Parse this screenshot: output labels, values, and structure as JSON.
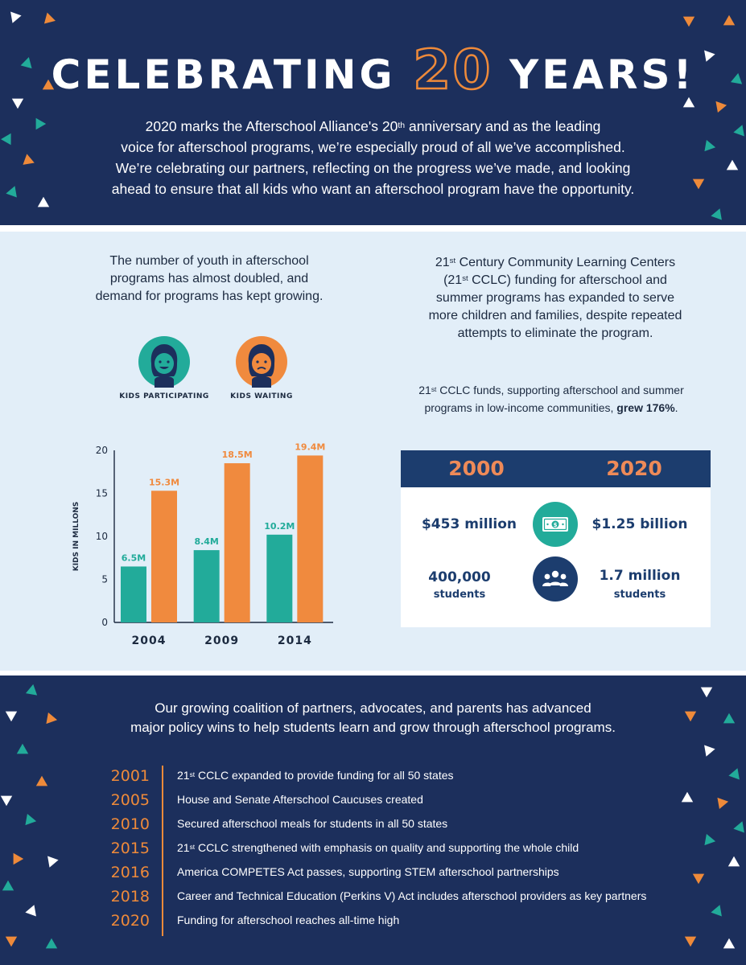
{
  "hero": {
    "title_pre": "CELEBRATING",
    "title_number": "20",
    "title_post": "YEARS!",
    "body_1a": "2020 marks the Afterschool Alliance's 20",
    "body_1sup": "th",
    "body_1b": " anniversary and as the leading",
    "body_2": "voice for afterschool programs, we’re especially proud of all we’ve accomplished.",
    "body_3": "We’re celebrating our partners, reflecting on the progress we’ve made, and looking",
    "body_4": "ahead to ensure that all kids who want an afterschool program have the opportunity."
  },
  "left": {
    "intro_1": "The number of youth in afterschool",
    "intro_2": "programs has almost doubled, and",
    "intro_3": "demand for programs has kept growing.",
    "legend_participating": "KIDS PARTICIPATING",
    "legend_waiting": "KIDS WAITING"
  },
  "chart_data": {
    "type": "bar",
    "categories": [
      "2004",
      "2009",
      "2014"
    ],
    "series": [
      {
        "name": "KIDS PARTICIPATING",
        "values": [
          6.5,
          8.4,
          10.2
        ],
        "labels": [
          "6.5M",
          "8.4M",
          "10.2M"
        ],
        "color": "#22ab9a"
      },
      {
        "name": "KIDS WAITING",
        "values": [
          15.3,
          18.5,
          19.4
        ],
        "labels": [
          "15.3M",
          "18.5M",
          "19.4M"
        ],
        "color": "#f08a3e"
      }
    ],
    "ylabel": "KIDS IN MILLONS",
    "xlabel": "",
    "ylim": [
      0,
      20
    ],
    "yticks": [
      0,
      5,
      10,
      15,
      20
    ],
    "grid": false,
    "legend": "top"
  },
  "right": {
    "intro_1a": "21",
    "intro_1sup": "st",
    "intro_1b": " Century Community Learning Centers",
    "intro_2a": "(21",
    "intro_2sup": "st",
    "intro_2b": " CCLC) funding for afterschool and",
    "intro_3": "summer programs has expanded to serve",
    "intro_4": "more children and families, despite repeated",
    "intro_5": "attempts to eliminate the program.",
    "note_1a": "21",
    "note_1sup": "st",
    "note_1b": " CCLC funds, supporting afterschool and summer",
    "note_2a": "programs in low-income communities, ",
    "note_2bold": "grew 176%",
    "note_2c": "."
  },
  "comparison": {
    "year_left": "2000",
    "year_right": "2020",
    "funding_left": "$453 million",
    "funding_right": "$1.25 billion",
    "students_left_num": "400,000",
    "students_left_label": "students",
    "students_right_num": "1.7 million",
    "students_right_label": "students",
    "money_icon": "money-bill-icon",
    "people_icon": "group-people-icon"
  },
  "bottom": {
    "intro_1": "Our growing coalition of partners, advocates, and parents has advanced",
    "intro_2": "major policy wins to help students learn and grow through afterschool programs.",
    "timeline": [
      {
        "year": "2001",
        "pre": "21",
        "sup": "st",
        "text": " CCLC expanded to provide funding for all 50 states"
      },
      {
        "year": "2005",
        "pre": "",
        "sup": "",
        "text": "House and Senate Afterschool Caucuses created"
      },
      {
        "year": "2010",
        "pre": "",
        "sup": "",
        "text": "Secured afterschool meals for students in all 50 states"
      },
      {
        "year": "2015",
        "pre": "21",
        "sup": "st",
        "text": " CCLC strengthened with emphasis on quality and supporting the whole child"
      },
      {
        "year": "2016",
        "pre": "",
        "sup": "",
        "text": "America COMPETES Act passes, supporting STEM afterschool partnerships"
      },
      {
        "year": "2018",
        "pre": "",
        "sup": "",
        "text": "Career and Technical Education (Perkins V) Act includes afterschool providers as key partners"
      },
      {
        "year": "2020",
        "pre": "",
        "sup": "",
        "text": "Funding for afterschool reaches all-time high"
      }
    ]
  },
  "colors": {
    "navy": "#1c2f5c",
    "orange": "#ee8a3a",
    "teal": "#22ab9a",
    "light_blue": "#e2eef8",
    "dark_blue": "#1c3d6e"
  }
}
